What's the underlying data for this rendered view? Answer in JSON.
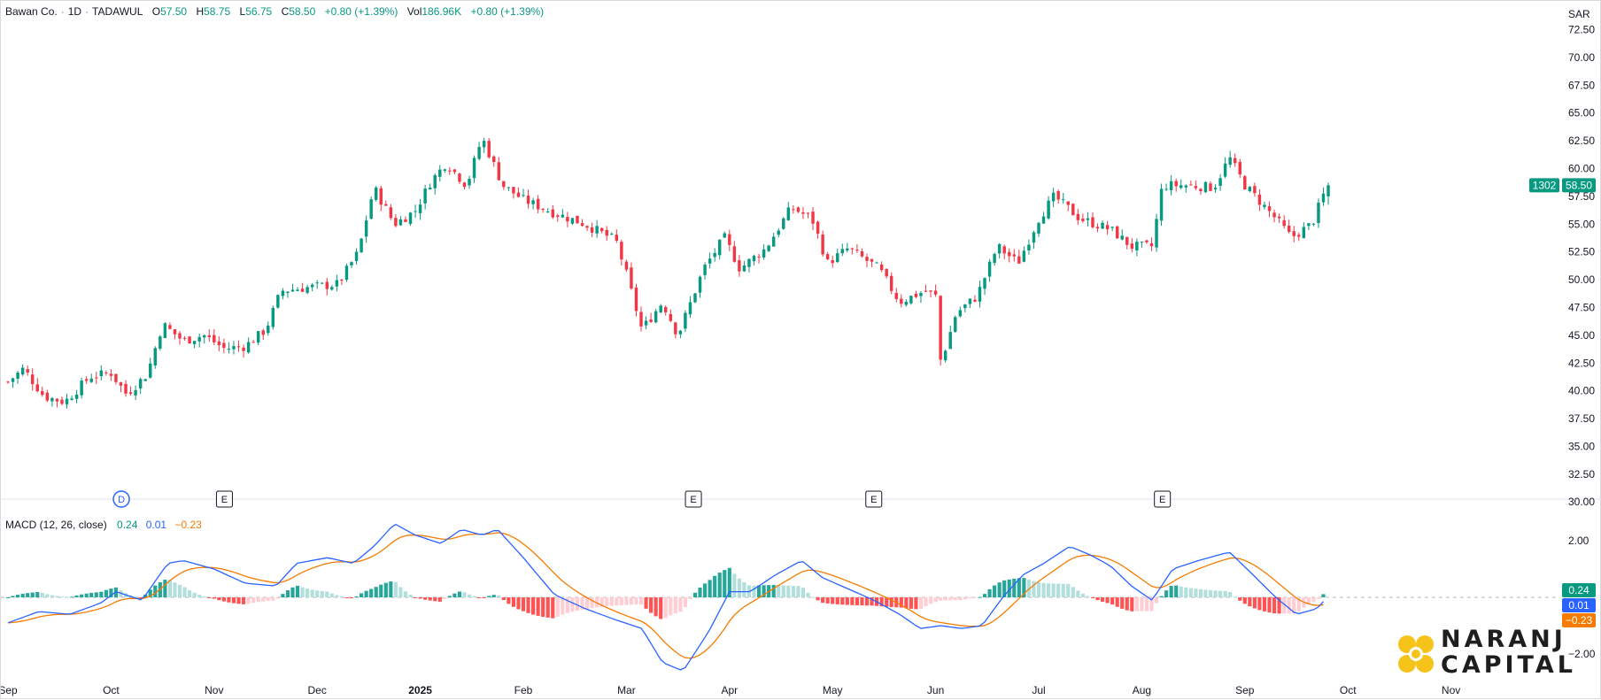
{
  "header": {
    "symbol": "Bawan Co.",
    "interval": "1D",
    "exchange": "TADAWUL",
    "open_label": "O",
    "open": "57.50",
    "high_label": "H",
    "high": "58.75",
    "low_label": "L",
    "low": "56.75",
    "close_label": "C",
    "close": "58.50",
    "change": "+0.80 (+1.39%)",
    "vol_label": "Vol",
    "vol": "186.96K",
    "vol_change": "+0.80 (+1.39%)"
  },
  "currency": "SAR",
  "price_badge": {
    "countdown": "1302",
    "price": "58.50"
  },
  "macd_header": {
    "title": "MACD (12, 26, close)",
    "hist": "0.24",
    "macd": "0.01",
    "signal": "−0.23"
  },
  "macd_badges": {
    "hist": "0.24",
    "macd": "0.01",
    "signal": "−0.23"
  },
  "markers": [
    {
      "label": "D",
      "month": 1.1
    },
    {
      "label": "E",
      "month": 2.1
    },
    {
      "label": "E",
      "month": 6.65
    },
    {
      "label": "E",
      "month": 8.4
    },
    {
      "label": "E",
      "month": 11.2
    }
  ],
  "logo": {
    "line1": "NARANJ",
    "line2": "CAPITAL"
  },
  "colors": {
    "up": "#089981",
    "down": "#f23645",
    "macd": "#2962ff",
    "signal": "#f57c00",
    "hist_up": "#26a69a",
    "hist_up_light": "#b2dfdb",
    "hist_down": "#ff5252",
    "hist_down_light": "#ffcdd2",
    "logo_yellow": "#f6c31a"
  },
  "chart_data": [
    {
      "type": "candlestick",
      "title": "Bawan Co. · 1D · TADAWUL",
      "x_ticks": [
        "Sep",
        "Oct",
        "Nov",
        "Dec",
        "2025",
        "Feb",
        "Mar",
        "Apr",
        "May",
        "Jun",
        "Jul",
        "Aug",
        "Sep",
        "Oct",
        "Nov"
      ],
      "y_ticks": [
        "72.50",
        "70.00",
        "67.50",
        "65.00",
        "62.50",
        "60.00",
        "57.50",
        "55.00",
        "52.50",
        "50.00",
        "47.50",
        "45.00",
        "42.50",
        "40.00",
        "37.50",
        "35.00",
        "32.50",
        "30.00"
      ],
      "ylim": [
        29.3,
        73.5
      ],
      "close_anchors": [
        {
          "month": 0.0,
          "close": 40.8
        },
        {
          "month": 0.15,
          "close": 42.0
        },
        {
          "month": 0.35,
          "close": 39.5
        },
        {
          "month": 0.55,
          "close": 39.0
        },
        {
          "month": 0.8,
          "close": 41.3
        },
        {
          "month": 1.0,
          "close": 41.6
        },
        {
          "month": 1.15,
          "close": 39.7
        },
        {
          "month": 1.35,
          "close": 41.5
        },
        {
          "month": 1.5,
          "close": 46.0
        },
        {
          "month": 1.7,
          "close": 44.5
        },
        {
          "month": 1.9,
          "close": 45.0
        },
        {
          "month": 2.1,
          "close": 43.8
        },
        {
          "month": 2.3,
          "close": 44.0
        },
        {
          "month": 2.5,
          "close": 45.5
        },
        {
          "month": 2.65,
          "close": 49.0
        },
        {
          "month": 2.9,
          "close": 49.3
        },
        {
          "month": 3.2,
          "close": 49.6
        },
        {
          "month": 3.4,
          "close": 52.5
        },
        {
          "month": 3.55,
          "close": 58.3
        },
        {
          "month": 3.75,
          "close": 55.0
        },
        {
          "month": 3.95,
          "close": 56.2
        },
        {
          "month": 4.1,
          "close": 58.8
        },
        {
          "month": 4.25,
          "close": 60.5
        },
        {
          "month": 4.45,
          "close": 58.5
        },
        {
          "month": 4.6,
          "close": 62.8
        },
        {
          "month": 4.8,
          "close": 58.5
        },
        {
          "month": 5.0,
          "close": 57.2
        },
        {
          "month": 5.3,
          "close": 56.0
        },
        {
          "month": 5.6,
          "close": 55.0
        },
        {
          "month": 5.9,
          "close": 53.5
        },
        {
          "month": 6.0,
          "close": 50.5
        },
        {
          "month": 6.15,
          "close": 45.5
        },
        {
          "month": 6.35,
          "close": 48.0
        },
        {
          "month": 6.5,
          "close": 45.0
        },
        {
          "month": 6.75,
          "close": 51.0
        },
        {
          "month": 6.95,
          "close": 53.8
        },
        {
          "month": 7.1,
          "close": 51.0
        },
        {
          "month": 7.35,
          "close": 52.8
        },
        {
          "month": 7.6,
          "close": 56.5
        },
        {
          "month": 7.8,
          "close": 55.5
        },
        {
          "month": 7.95,
          "close": 51.5
        },
        {
          "month": 8.15,
          "close": 52.8
        },
        {
          "month": 8.45,
          "close": 51.0
        },
        {
          "month": 8.65,
          "close": 48.0
        },
        {
          "month": 8.9,
          "close": 49.0
        },
        {
          "month": 9.0,
          "close": 48.5
        },
        {
          "month": 9.05,
          "close": 42.5
        },
        {
          "month": 9.2,
          "close": 47.0
        },
        {
          "month": 9.4,
          "close": 48.5
        },
        {
          "month": 9.6,
          "close": 53.0
        },
        {
          "month": 9.8,
          "close": 51.5
        },
        {
          "month": 10.0,
          "close": 55.5
        },
        {
          "month": 10.15,
          "close": 57.5
        },
        {
          "month": 10.4,
          "close": 55.5
        },
        {
          "month": 10.7,
          "close": 54.5
        },
        {
          "month": 10.9,
          "close": 53.0
        },
        {
          "month": 11.1,
          "close": 53.0
        },
        {
          "month": 11.2,
          "close": 58.5
        },
        {
          "month": 11.45,
          "close": 58.5
        },
        {
          "month": 11.7,
          "close": 58.3
        },
        {
          "month": 11.85,
          "close": 61.0
        },
        {
          "month": 12.0,
          "close": 58.5
        },
        {
          "month": 12.3,
          "close": 55.5
        },
        {
          "month": 12.45,
          "close": 53.8
        },
        {
          "month": 12.65,
          "close": 55.0
        },
        {
          "month": 12.8,
          "close": 58.5
        }
      ],
      "last_bar": {
        "open": 57.5,
        "high": 58.75,
        "low": 56.75,
        "close": 58.5
      }
    },
    {
      "type": "macd",
      "title": "MACD (12, 26, close)",
      "y_ticks": [
        "2.00",
        "−2.00"
      ],
      "ylim": [
        -3.0,
        3.0
      ],
      "macd_anchors": [
        {
          "month": 0.0,
          "value": -0.9
        },
        {
          "month": 0.3,
          "value": -0.5
        },
        {
          "month": 0.6,
          "value": -0.6
        },
        {
          "month": 0.9,
          "value": -0.2
        },
        {
          "month": 1.05,
          "value": 0.2
        },
        {
          "month": 1.3,
          "value": -0.1
        },
        {
          "month": 1.55,
          "value": 1.2
        },
        {
          "month": 1.7,
          "value": 1.3
        },
        {
          "month": 2.0,
          "value": 1.0
        },
        {
          "month": 2.3,
          "value": 0.5
        },
        {
          "month": 2.6,
          "value": 0.4
        },
        {
          "month": 2.8,
          "value": 1.2
        },
        {
          "month": 3.1,
          "value": 1.4
        },
        {
          "month": 3.35,
          "value": 1.2
        },
        {
          "month": 3.55,
          "value": 1.8
        },
        {
          "month": 3.75,
          "value": 2.6
        },
        {
          "month": 3.95,
          "value": 2.2
        },
        {
          "month": 4.2,
          "value": 1.9
        },
        {
          "month": 4.4,
          "value": 2.4
        },
        {
          "month": 4.6,
          "value": 2.2
        },
        {
          "month": 4.75,
          "value": 2.4
        },
        {
          "month": 5.0,
          "value": 1.4
        },
        {
          "month": 5.3,
          "value": 0.1
        },
        {
          "month": 5.6,
          "value": -0.4
        },
        {
          "month": 5.9,
          "value": -0.8
        },
        {
          "month": 6.15,
          "value": -1.1
        },
        {
          "month": 6.35,
          "value": -2.3
        },
        {
          "month": 6.55,
          "value": -2.6
        },
        {
          "month": 6.8,
          "value": -1.2
        },
        {
          "month": 7.0,
          "value": 0.2
        },
        {
          "month": 7.2,
          "value": 0.2
        },
        {
          "month": 7.45,
          "value": 0.8
        },
        {
          "month": 7.7,
          "value": 1.3
        },
        {
          "month": 7.9,
          "value": 0.7
        },
        {
          "month": 8.15,
          "value": 0.3
        },
        {
          "month": 8.4,
          "value": -0.1
        },
        {
          "month": 8.65,
          "value": -0.6
        },
        {
          "month": 8.85,
          "value": -1.1
        },
        {
          "month": 9.05,
          "value": -1.0
        },
        {
          "month": 9.25,
          "value": -1.1
        },
        {
          "month": 9.45,
          "value": -1.0
        },
        {
          "month": 9.65,
          "value": 0.0
        },
        {
          "month": 9.85,
          "value": 0.8
        },
        {
          "month": 10.05,
          "value": 1.2
        },
        {
          "month": 10.3,
          "value": 1.8
        },
        {
          "month": 10.5,
          "value": 1.5
        },
        {
          "month": 10.7,
          "value": 1.1
        },
        {
          "month": 10.9,
          "value": 0.4
        },
        {
          "month": 11.1,
          "value": -0.1
        },
        {
          "month": 11.3,
          "value": 1.0
        },
        {
          "month": 11.55,
          "value": 1.3
        },
        {
          "month": 11.85,
          "value": 1.6
        },
        {
          "month": 12.05,
          "value": 0.9
        },
        {
          "month": 12.3,
          "value": 0.0
        },
        {
          "month": 12.5,
          "value": -0.6
        },
        {
          "month": 12.7,
          "value": -0.4
        },
        {
          "month": 12.8,
          "value": 0.01
        }
      ],
      "last_values": {
        "histogram": 0.24,
        "macd": 0.01,
        "signal": -0.23
      }
    }
  ]
}
